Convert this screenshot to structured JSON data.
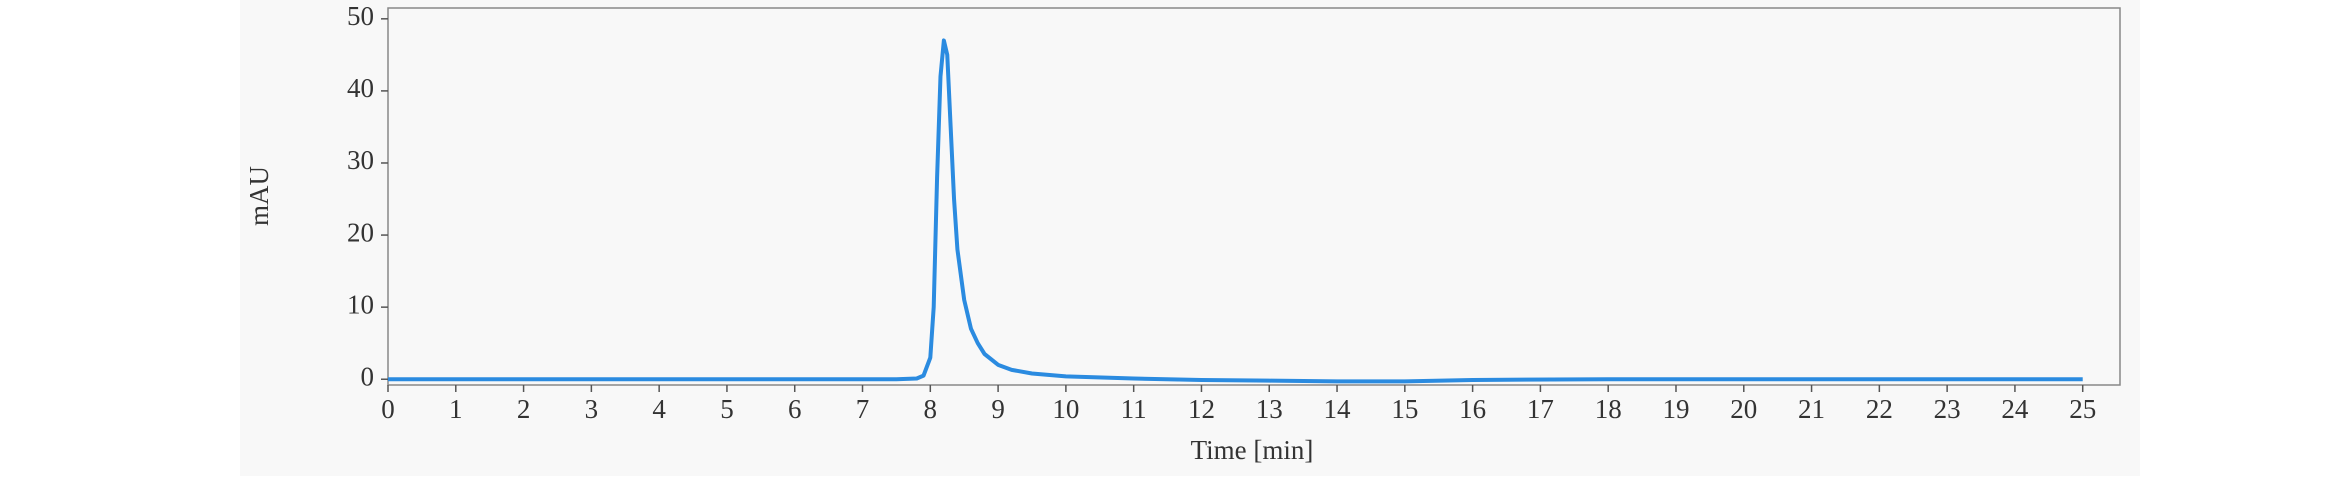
{
  "chart_data": {
    "type": "line",
    "x_label": "Time [min]",
    "y_label": "mAU",
    "x": [
      0,
      2,
      4,
      6,
      7.5,
      7.8,
      7.9,
      8.0,
      8.05,
      8.1,
      8.15,
      8.2,
      8.25,
      8.3,
      8.35,
      8.4,
      8.5,
      8.6,
      8.7,
      8.8,
      9.0,
      9.2,
      9.5,
      10,
      11,
      12,
      13,
      14,
      15,
      16,
      18,
      20,
      22,
      24,
      25
    ],
    "series": [
      {
        "color": "#2b8be0",
        "values": [
          0,
          0,
          0,
          0,
          0,
          0.1,
          0.5,
          3,
          10,
          28,
          42,
          47,
          45,
          35,
          25,
          18,
          11,
          7,
          5,
          3.5,
          2,
          1.3,
          0.8,
          0.4,
          0.1,
          -0.1,
          -0.2,
          -0.3,
          -0.3,
          -0.1,
          0,
          0,
          0,
          0,
          0
        ]
      }
    ],
    "xlim": [
      0,
      25.55
    ],
    "xticks": [
      0,
      1,
      2,
      3,
      4,
      5,
      6,
      7,
      8,
      9,
      10,
      11,
      12,
      13,
      14,
      15,
      16,
      17,
      18,
      19,
      20,
      21,
      22,
      23,
      24,
      25
    ],
    "ylim": [
      -0.8,
      51.5
    ],
    "yticks": [
      0,
      10,
      20,
      30,
      40,
      50
    ],
    "grid": false
  }
}
